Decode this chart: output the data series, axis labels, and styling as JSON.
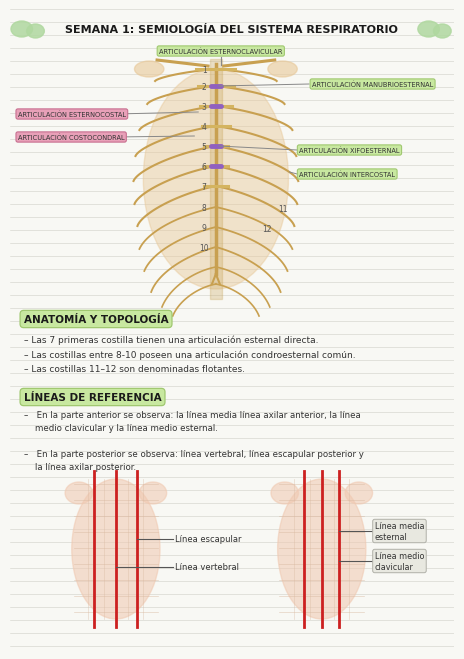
{
  "title": "SEMANA 1: SEMIOLOGÍA DEL SISTEMA RESPIRATORIO",
  "bg_color": "#f8f8f4",
  "green_label_bg": "#c8e8a0",
  "green_label_border": "#a0c870",
  "pink_label_bg": "#e8a0b8",
  "pink_label_border": "#c87090",
  "section1_title": "ANATOMÍA Y TOPOLOGÍA",
  "section1_bullets": [
    "– Las 7 primeras costilla tienen una articulación esternal directa.",
    "– Las costillas entre 8-10 poseen una articulación condroesternal común.",
    "– Las costillas 11–12 son denominadas flotantes."
  ],
  "section2_title": "LÍNEAS DE REFERENCIA",
  "section2_bullet1_lines": [
    "–   En la parte anterior se observa: la línea media línea axilar anterior, la línea",
    "    medio clavicular y la línea medio esternal."
  ],
  "section2_bullet2_lines": [
    "–   En la parte posterior se observa: línea vertebral, línea escapular posterior y",
    "    la línea axilar posterior."
  ],
  "labels_green_top": "ARTICULACIÓN ESTERNOCLAVICULAR",
  "labels_green_right1": "ARTICULACIÓN MANUBRIOESTERNAL",
  "labels_green_right2": "ARTICULACIÓN XIFOESTERNAL",
  "labels_green_right3": "ARTICULACIÓN INTERCOSTAL",
  "labels_pink_left1": "ARTICULACIÓN ESTERNOCOSTAL",
  "labels_pink_left2": "ARTICULACIÓN COSTOCONDRAL",
  "rib_numbers": [
    "1",
    "2",
    "3",
    "4",
    "5",
    "6",
    "7",
    "8",
    "9",
    "10",
    "11",
    "12"
  ],
  "bottom_left_label1": "Línea escapular",
  "bottom_left_label2": "Línea vertebral",
  "bottom_right_label1": "Línea media\nesternal",
  "bottom_right_label2": "Línea medio\nclavicular",
  "rib_color": "#c8a050",
  "cart_color": "#d4b460",
  "body_color": "#e8c898",
  "line_h_color": "#d0d0c8"
}
